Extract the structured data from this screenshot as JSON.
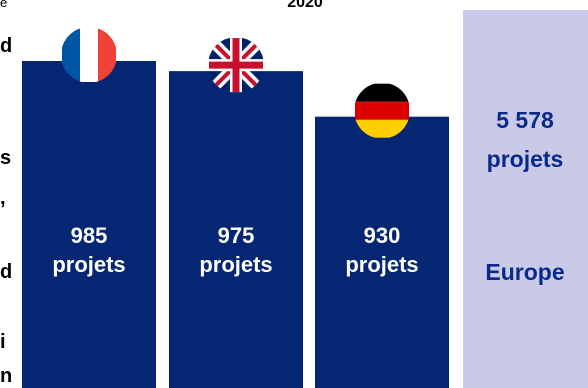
{
  "chart_data": {
    "type": "bar",
    "title": "2020",
    "categories": [
      "France",
      "Royaume-Uni",
      "Allemagne"
    ],
    "values": [
      985,
      975,
      930
    ],
    "value_labels": [
      "985",
      "975",
      "930"
    ],
    "unit": "projets",
    "bar_color": "#052773",
    "flags": [
      "flag-france-icon",
      "flag-uk-icon",
      "flag-germany-icon"
    ],
    "total": {
      "value_label": "5 578",
      "unit": "projets",
      "label": "Europe",
      "bg_color": "#c9c9e8",
      "text_color": "#0a2a8a"
    }
  },
  "left_fragments": [
    "e",
    "d",
    "s",
    ",",
    "d",
    "i",
    "n"
  ]
}
